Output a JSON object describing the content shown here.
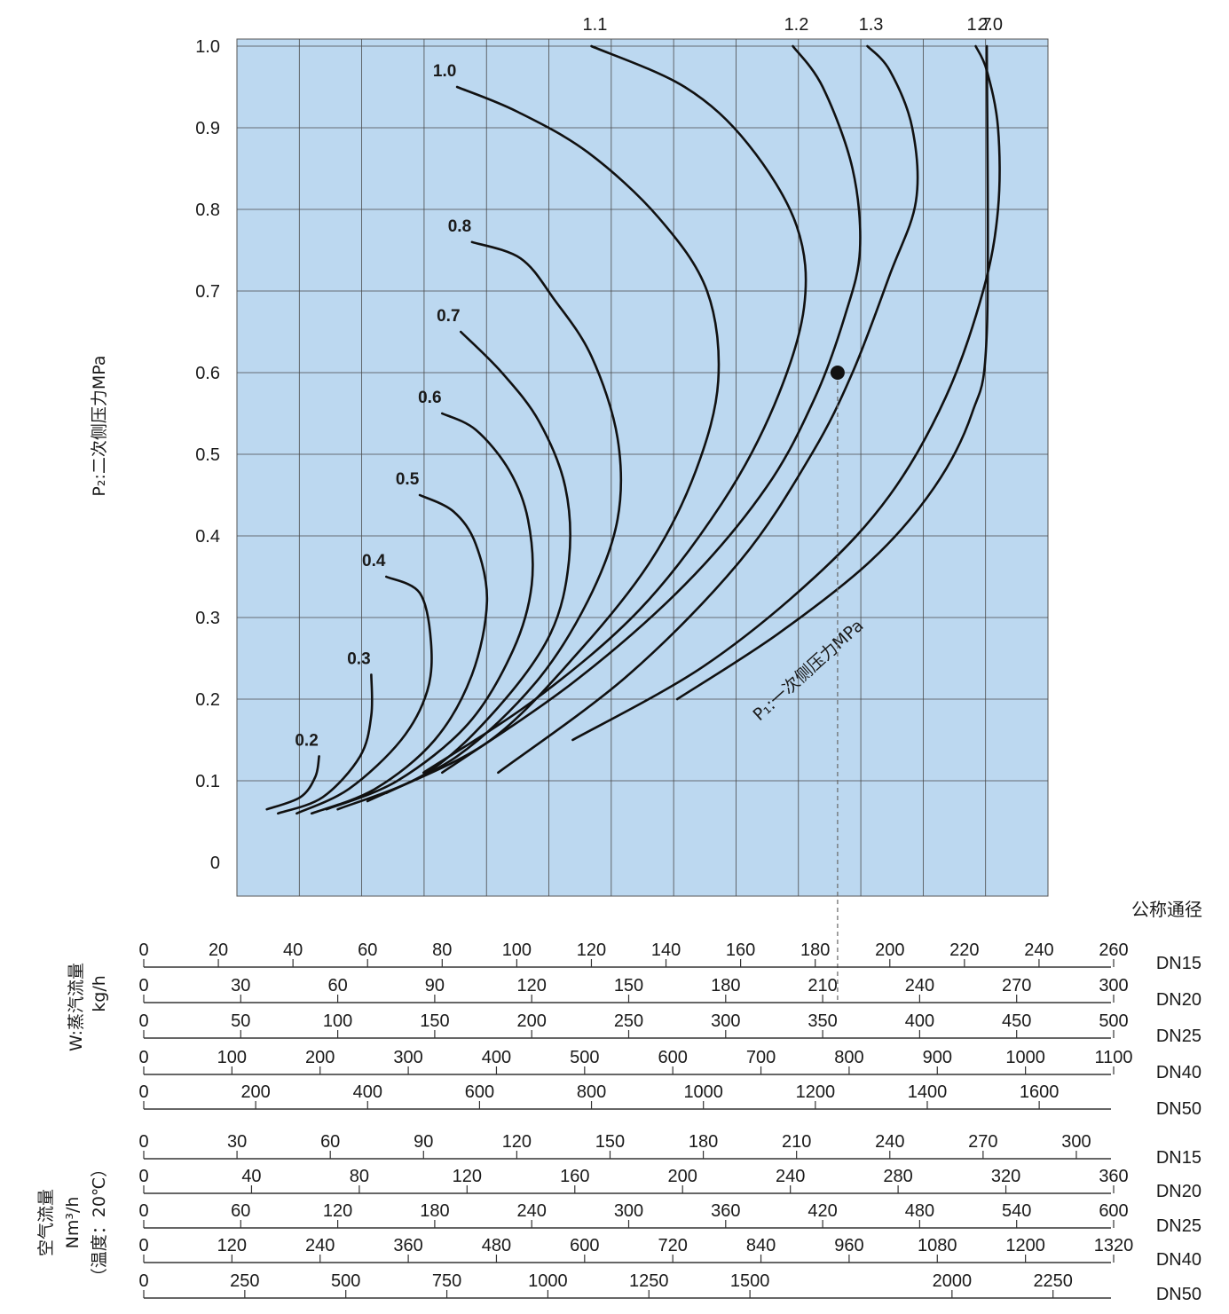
{
  "chart_data": {
    "type": "line",
    "ylabel": "P₂:二次侧压力MPa",
    "y_ticks": [
      "1.0",
      "0.9",
      "0.8",
      "0.7",
      "0.6",
      "0.5",
      "0.4",
      "0.3",
      "0.2",
      "0.1",
      "0"
    ],
    "ylim": [
      0,
      1.0
    ],
    "xlim": [
      0,
      260
    ],
    "grid": true,
    "background_color": "#bcd8f0",
    "curve_family_label": "P₁:一次侧压力MPa",
    "example_point": {
      "x": 186,
      "y": 0.6
    },
    "series": [
      {
        "name": "0.2",
        "points": [
          [
            33,
            0.065
          ],
          [
            42,
            0.08
          ],
          [
            46,
            0.105
          ],
          [
            47,
            0.13
          ]
        ]
      },
      {
        "name": "0.3",
        "points": [
          [
            36,
            0.06
          ],
          [
            48,
            0.08
          ],
          [
            58,
            0.13
          ],
          [
            61,
            0.18
          ],
          [
            61,
            0.23
          ]
        ]
      },
      {
        "name": "0.4",
        "points": [
          [
            41,
            0.06
          ],
          [
            55,
            0.09
          ],
          [
            69,
            0.15
          ],
          [
            76,
            0.21
          ],
          [
            77,
            0.27
          ],
          [
            74,
            0.33
          ],
          [
            65,
            0.35
          ]
        ]
      },
      {
        "name": "0.5",
        "points": [
          [
            45,
            0.06
          ],
          [
            62,
            0.09
          ],
          [
            78,
            0.15
          ],
          [
            88,
            0.23
          ],
          [
            92,
            0.32
          ],
          [
            89,
            0.39
          ],
          [
            83,
            0.43
          ],
          [
            74,
            0.45
          ]
        ]
      },
      {
        "name": "0.6",
        "points": [
          [
            49,
            0.065
          ],
          [
            68,
            0.1
          ],
          [
            87,
            0.17
          ],
          [
            99,
            0.26
          ],
          [
            104,
            0.34
          ],
          [
            103,
            0.42
          ],
          [
            98,
            0.48
          ],
          [
            89,
            0.53
          ],
          [
            80,
            0.55
          ]
        ]
      },
      {
        "name": "0.7",
        "points": [
          [
            52,
            0.065
          ],
          [
            76,
            0.11
          ],
          [
            95,
            0.19
          ],
          [
            109,
            0.28
          ],
          [
            114,
            0.37
          ],
          [
            113,
            0.46
          ],
          [
            106,
            0.54
          ],
          [
            96,
            0.6
          ],
          [
            85,
            0.65
          ]
        ]
      },
      {
        "name": "0.8",
        "points": [
          [
            60,
            0.075
          ],
          [
            84,
            0.13
          ],
          [
            105,
            0.22
          ],
          [
            119,
            0.32
          ],
          [
            127,
            0.42
          ],
          [
            127,
            0.52
          ],
          [
            120,
            0.62
          ],
          [
            110,
            0.69
          ],
          [
            101,
            0.74
          ],
          [
            88,
            0.76
          ]
        ]
      },
      {
        "name": "1.0",
        "points": [
          [
            65,
            0.085
          ],
          [
            93,
            0.15
          ],
          [
            117,
            0.26
          ],
          [
            136,
            0.37
          ],
          [
            148,
            0.48
          ],
          [
            154,
            0.59
          ],
          [
            151,
            0.7
          ],
          [
            138,
            0.79
          ],
          [
            119,
            0.87
          ],
          [
            100,
            0.92
          ],
          [
            84,
            0.95
          ]
        ]
      },
      {
        "name": "1.1",
        "points": [
          [
            75,
            0.11
          ],
          [
            105,
            0.2
          ],
          [
            133,
            0.31
          ],
          [
            155,
            0.44
          ],
          [
            169,
            0.56
          ],
          [
            177,
            0.68
          ],
          [
            175,
            0.78
          ],
          [
            162,
            0.88
          ],
          [
            145,
            0.95
          ],
          [
            120,
            1.0
          ]
        ]
      },
      {
        "name": "1.2",
        "points": [
          [
            80,
            0.11
          ],
          [
            115,
            0.22
          ],
          [
            145,
            0.34
          ],
          [
            167,
            0.46
          ],
          [
            180,
            0.57
          ],
          [
            188,
            0.67
          ],
          [
            192,
            0.75
          ],
          [
            190,
            0.85
          ],
          [
            182,
            0.95
          ],
          [
            174,
            1.0
          ]
        ]
      },
      {
        "name": "1.3",
        "points": [
          [
            95,
            0.11
          ],
          [
            130,
            0.23
          ],
          [
            160,
            0.37
          ],
          [
            179,
            0.5
          ],
          [
            190,
            0.6
          ],
          [
            200,
            0.72
          ],
          [
            207,
            0.81
          ],
          [
            206,
            0.9
          ],
          [
            200,
            0.97
          ],
          [
            194,
            1.0
          ]
        ]
      },
      {
        "name": "1.7",
        "points": [
          [
            115,
            0.15
          ],
          [
            150,
            0.24
          ],
          [
            180,
            0.35
          ],
          [
            200,
            0.45
          ],
          [
            215,
            0.57
          ],
          [
            225,
            0.7
          ],
          [
            229,
            0.8
          ],
          [
            229,
            0.9
          ],
          [
            226,
            0.97
          ],
          [
            223,
            1.0
          ]
        ]
      },
      {
        "name": "2.0",
        "points": [
          [
            143,
            0.2
          ],
          [
            170,
            0.28
          ],
          [
            195,
            0.37
          ],
          [
            212,
            0.46
          ],
          [
            222,
            0.55
          ],
          [
            226,
            0.65
          ],
          [
            226,
            1.0
          ]
        ]
      }
    ],
    "top_labels": [
      "1.1",
      "1.2",
      "1.3",
      "1.7",
      "2.0"
    ],
    "inline_labels": [
      "1.0",
      "0.8",
      "0.7",
      "0.6",
      "0.5",
      "0.4",
      "0.3",
      "0.2"
    ]
  },
  "flow_scales": {
    "header": "公称通径",
    "steam": {
      "title_line1": "W:蒸汽流量",
      "title_line2": "kg/h",
      "scales": [
        {
          "dn": "DN15",
          "max": 260,
          "labels": [
            "0",
            "20",
            "40",
            "60",
            "80",
            "100",
            "120",
            "140",
            "160",
            "180",
            "200",
            "220",
            "240",
            "260"
          ]
        },
        {
          "dn": "DN20",
          "max": 300,
          "labels": [
            "0",
            "30",
            "60",
            "90",
            "120",
            "150",
            "180",
            "210",
            "240",
            "270",
            "300"
          ]
        },
        {
          "dn": "DN25",
          "max": 500,
          "labels": [
            "0",
            "50",
            "100",
            "150",
            "200",
            "250",
            "300",
            "350",
            "400",
            "450",
            "500"
          ]
        },
        {
          "dn": "DN40",
          "max": 1100,
          "labels": [
            "0",
            "100",
            "200",
            "300",
            "400",
            "500",
            "600",
            "700",
            "800",
            "900",
            "1000",
            "1100"
          ]
        },
        {
          "dn": "DN50",
          "max": 1733,
          "labels": [
            "0",
            "200",
            "400",
            "600",
            "800",
            "1000",
            "1200",
            "1400",
            "1600"
          ]
        }
      ]
    },
    "air": {
      "title_line1": "空气流量",
      "title_line2": "Nm³/h",
      "title_line3": "（温度：20℃）",
      "scales": [
        {
          "dn": "DN15",
          "max": 312,
          "labels": [
            "0",
            "30",
            "60",
            "90",
            "120",
            "150",
            "180",
            "210",
            "240",
            "270",
            "300"
          ]
        },
        {
          "dn": "DN20",
          "max": 360,
          "labels": [
            "0",
            "40",
            "80",
            "120",
            "160",
            "200",
            "240",
            "280",
            "320",
            "360"
          ]
        },
        {
          "dn": "DN25",
          "max": 600,
          "labels": [
            "0",
            "60",
            "120",
            "180",
            "240",
            "300",
            "360",
            "420",
            "480",
            "540",
            "600"
          ]
        },
        {
          "dn": "DN40",
          "max": 1320,
          "labels": [
            "0",
            "120",
            "240",
            "360",
            "480",
            "600",
            "720",
            "840",
            "960",
            "1080",
            "1200",
            "1320"
          ]
        },
        {
          "dn": "DN50",
          "max": 2400,
          "labels": [
            "0",
            "250",
            "500",
            "750",
            "1000",
            "1250",
            "1500",
            "2000",
            "2250"
          ],
          "values": [
            0,
            250,
            500,
            750,
            1000,
            1250,
            1500,
            2000,
            2250
          ]
        }
      ]
    }
  }
}
